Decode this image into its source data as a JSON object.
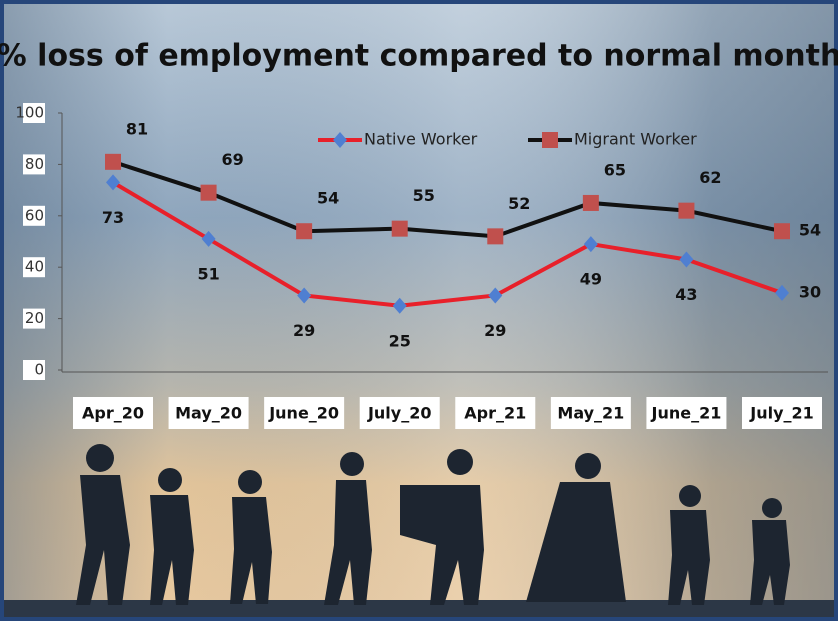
{
  "chart_data": {
    "type": "line",
    "title": "% loss of employment compared to normal month",
    "categories": [
      "Apr_20",
      "May_20",
      "June_20",
      "July_20",
      "Apr_21",
      "May_21",
      "June_21",
      "July_21"
    ],
    "series": [
      {
        "name": "Native Worker",
        "color": "#e8202a",
        "marker_color": "#4f7fd1",
        "marker": "diamond",
        "values": [
          73,
          51,
          29,
          25,
          29,
          49,
          43,
          30
        ]
      },
      {
        "name": "Migrant Worker",
        "color": "#111111",
        "marker_color": "#c0504d",
        "marker": "square",
        "values": [
          81,
          69,
          54,
          55,
          52,
          65,
          62,
          54
        ]
      }
    ],
    "ylim": [
      0,
      100
    ],
    "yticks": [
      0,
      20,
      40,
      60,
      80,
      100
    ],
    "legend": "top-right"
  }
}
